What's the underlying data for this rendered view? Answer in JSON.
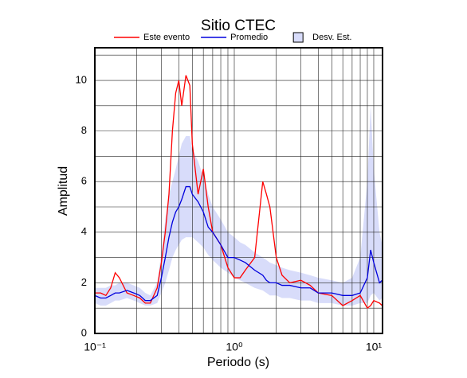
{
  "chart_data": {
    "type": "line",
    "title": "Sitio CTEC",
    "xlabel": "Periodo (s)",
    "ylabel": "Amplitud",
    "xscale": "log",
    "grid": true,
    "legend": "top",
    "xlim": [
      0.1,
      11.56
    ],
    "ylim": [
      0,
      11.29
    ],
    "xticks": [
      {
        "value": 0.1,
        "label": "10⁻¹"
      },
      {
        "value": 1,
        "label": "10⁰"
      },
      {
        "value": 10,
        "label": "10¹"
      }
    ],
    "x_minor_ticks": [
      0.2,
      0.3,
      0.4,
      0.5,
      0.6,
      0.7,
      0.8,
      0.9,
      2,
      3,
      4,
      5,
      6,
      7,
      8,
      9
    ],
    "yticks": [
      0,
      2,
      4,
      6,
      8,
      10
    ],
    "y_minor_ticks": [
      1,
      3,
      5,
      7,
      9,
      11
    ],
    "x": [
      0.1,
      0.11,
      0.12,
      0.13,
      0.14,
      0.15,
      0.17,
      0.19,
      0.21,
      0.23,
      0.25,
      0.28,
      0.3,
      0.32,
      0.34,
      0.36,
      0.38,
      0.4,
      0.42,
      0.45,
      0.48,
      0.5,
      0.55,
      0.6,
      0.65,
      0.7,
      0.8,
      0.9,
      1.0,
      1.1,
      1.2,
      1.4,
      1.6,
      1.7,
      1.8,
      2.0,
      2.2,
      2.5,
      3,
      3.5,
      4,
      5,
      6,
      7,
      8,
      9,
      9.5,
      10,
      11,
      11.5
    ],
    "series": [
      {
        "name": "Este evento",
        "color": "#ff0000",
        "values": [
          1.6,
          1.6,
          1.5,
          1.8,
          2.4,
          2.2,
          1.6,
          1.5,
          1.4,
          1.2,
          1.2,
          1.8,
          2.8,
          4.0,
          5.5,
          8.0,
          9.5,
          10.0,
          9.0,
          10.2,
          9.8,
          7.5,
          5.5,
          6.5,
          5.0,
          4.0,
          3.5,
          2.6,
          2.2,
          2.2,
          2.5,
          3.0,
          6.0,
          5.5,
          5.0,
          3.0,
          2.3,
          2.0,
          2.1,
          1.9,
          1.6,
          1.5,
          1.1,
          1.3,
          1.5,
          1.0,
          1.1,
          1.3,
          1.2,
          1.1
        ]
      },
      {
        "name": "Promedio",
        "color": "#0000dd",
        "values": [
          1.5,
          1.4,
          1.4,
          1.5,
          1.6,
          1.6,
          1.7,
          1.6,
          1.5,
          1.3,
          1.3,
          1.5,
          2.2,
          3.0,
          3.8,
          4.4,
          4.8,
          5.0,
          5.3,
          5.8,
          5.8,
          5.5,
          5.2,
          4.8,
          4.2,
          4.0,
          3.5,
          3.0,
          3.0,
          2.9,
          2.8,
          2.5,
          2.3,
          2.1,
          2.0,
          2.0,
          1.9,
          1.9,
          1.8,
          1.8,
          1.6,
          1.6,
          1.5,
          1.5,
          1.6,
          2.2,
          3.3,
          2.8,
          2.0,
          2.1
        ]
      },
      {
        "name": "Desv. Est.",
        "color": "#d8dcfa",
        "type": "band",
        "upper": [
          1.8,
          1.8,
          1.8,
          1.9,
          1.9,
          2.0,
          2.0,
          1.9,
          1.8,
          1.6,
          1.5,
          2.0,
          3.2,
          4.5,
          5.5,
          6.0,
          6.5,
          7.0,
          7.5,
          7.8,
          7.8,
          7.3,
          6.8,
          6.2,
          5.5,
          5.0,
          4.5,
          4.0,
          3.8,
          3.6,
          3.5,
          3.2,
          3.0,
          2.9,
          2.8,
          2.7,
          2.6,
          2.5,
          2.4,
          2.3,
          2.2,
          2.1,
          2.0,
          2.2,
          3.0,
          6.0,
          9.0,
          6.5,
          4.0,
          3.5
        ],
        "lower": [
          1.2,
          1.1,
          1.1,
          1.2,
          1.3,
          1.3,
          1.4,
          1.3,
          1.2,
          1.1,
          1.1,
          1.2,
          1.6,
          2.0,
          2.5,
          3.0,
          3.3,
          3.5,
          3.7,
          3.8,
          3.8,
          3.8,
          3.6,
          3.4,
          3.1,
          2.9,
          2.6,
          2.4,
          2.2,
          2.1,
          2.0,
          1.8,
          1.7,
          1.6,
          1.5,
          1.5,
          1.4,
          1.4,
          1.3,
          1.3,
          1.2,
          1.2,
          1.1,
          1.1,
          1.2,
          1.2,
          1.5,
          1.6,
          1.3,
          1.4
        ]
      }
    ]
  }
}
